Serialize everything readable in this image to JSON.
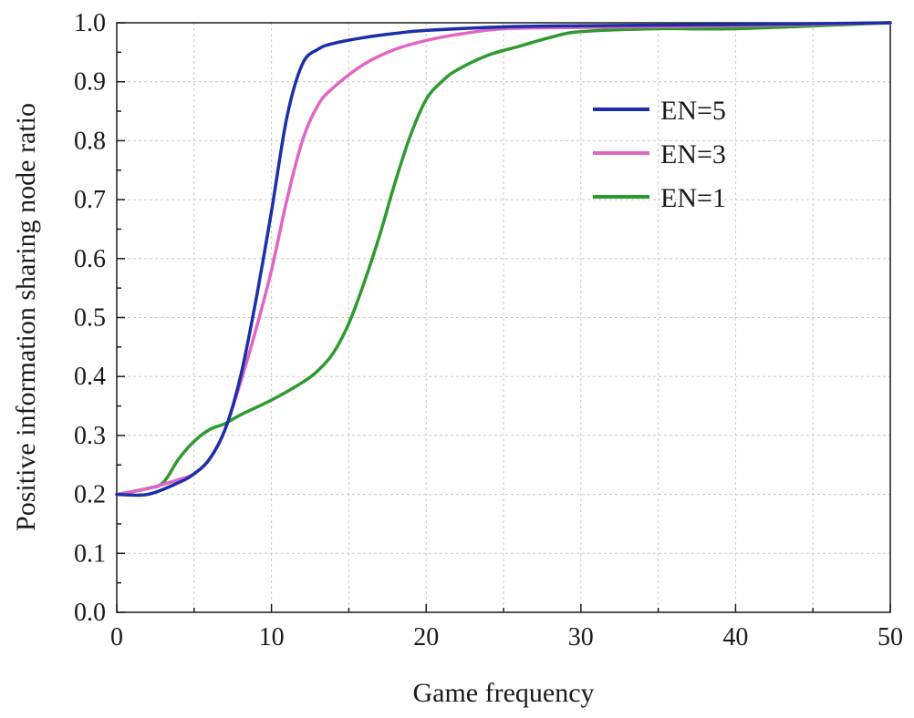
{
  "chart_data": {
    "type": "line",
    "title": "",
    "xlabel": "Game frequency",
    "ylabel": "Positive information sharing node ratio",
    "xlim": [
      0,
      50
    ],
    "ylim": [
      0,
      1.0
    ],
    "x_ticks": [
      0,
      10,
      20,
      30,
      40,
      50
    ],
    "x_tick_labels": [
      "0",
      "10",
      "20",
      "30",
      "40",
      "50"
    ],
    "y_ticks": [
      0.0,
      0.1,
      0.2,
      0.3,
      0.4,
      0.5,
      0.6,
      0.7,
      0.8,
      0.9,
      1.0
    ],
    "y_tick_labels": [
      "0.0",
      "0.1",
      "0.2",
      "0.3",
      "0.4",
      "0.5",
      "0.6",
      "0.7",
      "0.8",
      "0.9",
      "1.0"
    ],
    "grid": true,
    "legend_position": "upper-right",
    "series": [
      {
        "name": "EN=5",
        "color": "#1c2fa8",
        "x": [
          0,
          2,
          4,
          5,
          6,
          7,
          8,
          9,
          10,
          11,
          12,
          13,
          14,
          16,
          18,
          20,
          25,
          30,
          40,
          50
        ],
        "y": [
          0.2,
          0.2,
          0.22,
          0.235,
          0.26,
          0.31,
          0.4,
          0.53,
          0.68,
          0.84,
          0.93,
          0.955,
          0.965,
          0.975,
          0.982,
          0.987,
          0.993,
          0.995,
          0.997,
          1.0
        ]
      },
      {
        "name": "EN=3",
        "color": "#e065c4",
        "x": [
          0,
          2,
          4,
          5,
          6,
          7,
          8,
          9,
          10,
          11,
          12,
          13,
          14,
          16,
          18,
          20,
          22,
          25,
          30,
          40,
          50
        ],
        "y": [
          0.2,
          0.21,
          0.225,
          0.235,
          0.26,
          0.31,
          0.39,
          0.48,
          0.58,
          0.7,
          0.8,
          0.86,
          0.89,
          0.93,
          0.955,
          0.97,
          0.98,
          0.99,
          0.992,
          0.995,
          1.0
        ]
      },
      {
        "name": "EN=1",
        "color": "#2e9a2e",
        "x": [
          0,
          2,
          3,
          4,
          5,
          6,
          7,
          8,
          10,
          12,
          13,
          14,
          15,
          16,
          17,
          18,
          19,
          20,
          21,
          22,
          24,
          26,
          28,
          30,
          35,
          40,
          50
        ],
        "y": [
          0.2,
          0.21,
          0.22,
          0.26,
          0.29,
          0.31,
          0.32,
          0.335,
          0.36,
          0.39,
          0.41,
          0.44,
          0.49,
          0.56,
          0.64,
          0.73,
          0.81,
          0.87,
          0.9,
          0.92,
          0.945,
          0.96,
          0.975,
          0.985,
          0.99,
          0.99,
          1.0
        ]
      }
    ]
  }
}
